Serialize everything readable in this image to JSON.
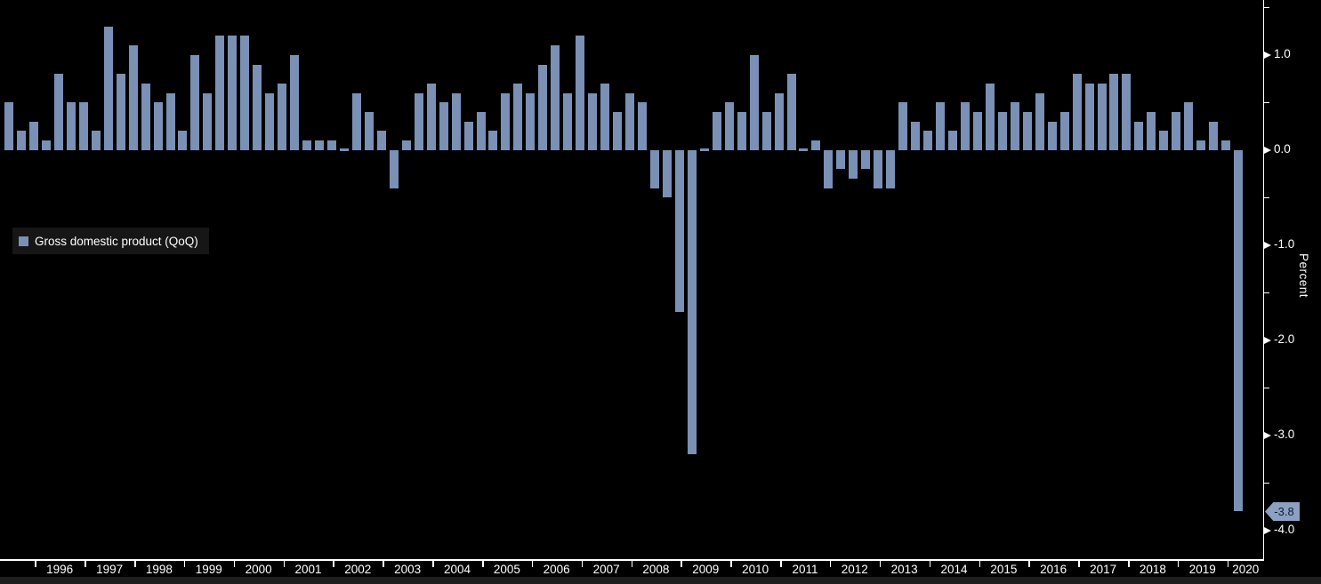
{
  "chart_data": {
    "type": "bar",
    "title": "",
    "legend_label": "Gross domestic product (QoQ)",
    "ylabel": "Percent",
    "grid": false,
    "legend_position": "middle-left",
    "categories": [
      "1995 Q2",
      "1995 Q3",
      "1995 Q4",
      "1996 Q1",
      "1996 Q2",
      "1996 Q3",
      "1996 Q4",
      "1997 Q1",
      "1997 Q2",
      "1997 Q3",
      "1997 Q4",
      "1998 Q1",
      "1998 Q2",
      "1998 Q3",
      "1998 Q4",
      "1999 Q1",
      "1999 Q2",
      "1999 Q3",
      "1999 Q4",
      "2000 Q1",
      "2000 Q2",
      "2000 Q3",
      "2000 Q4",
      "2001 Q1",
      "2001 Q2",
      "2001 Q3",
      "2001 Q4",
      "2002 Q1",
      "2002 Q2",
      "2002 Q3",
      "2002 Q4",
      "2003 Q1",
      "2003 Q2",
      "2003 Q3",
      "2003 Q4",
      "2004 Q1",
      "2004 Q2",
      "2004 Q3",
      "2004 Q4",
      "2005 Q1",
      "2005 Q2",
      "2005 Q3",
      "2005 Q4",
      "2006 Q1",
      "2006 Q2",
      "2006 Q3",
      "2006 Q4",
      "2007 Q1",
      "2007 Q2",
      "2007 Q3",
      "2007 Q4",
      "2008 Q1",
      "2008 Q2",
      "2008 Q3",
      "2008 Q4",
      "2009 Q1",
      "2009 Q2",
      "2009 Q3",
      "2009 Q4",
      "2010 Q1",
      "2010 Q2",
      "2010 Q3",
      "2010 Q4",
      "2011 Q1",
      "2011 Q2",
      "2011 Q3",
      "2011 Q4",
      "2012 Q1",
      "2012 Q2",
      "2012 Q3",
      "2012 Q4",
      "2013 Q1",
      "2013 Q2",
      "2013 Q3",
      "2013 Q4",
      "2014 Q1",
      "2014 Q2",
      "2014 Q3",
      "2014 Q4",
      "2015 Q1",
      "2015 Q2",
      "2015 Q3",
      "2015 Q4",
      "2016 Q1",
      "2016 Q2",
      "2016 Q3",
      "2016 Q4",
      "2017 Q1",
      "2017 Q2",
      "2017 Q3",
      "2017 Q4",
      "2018 Q1",
      "2018 Q2",
      "2018 Q3",
      "2018 Q4",
      "2019 Q1",
      "2019 Q2",
      "2019 Q3",
      "2019 Q4",
      "2020 Q1"
    ],
    "values": [
      0.5,
      0.2,
      0.3,
      0.1,
      0.8,
      0.5,
      0.5,
      0.2,
      1.3,
      0.8,
      1.1,
      0.7,
      0.5,
      0.6,
      0.2,
      1.0,
      0.6,
      1.2,
      1.2,
      1.2,
      0.9,
      0.6,
      0.7,
      1.0,
      0.1,
      0.1,
      0.1,
      0.0,
      0.6,
      0.4,
      0.2,
      -0.4,
      0.1,
      0.6,
      0.7,
      0.5,
      0.6,
      0.3,
      0.4,
      0.2,
      0.6,
      0.7,
      0.6,
      0.9,
      1.1,
      0.6,
      1.2,
      0.6,
      0.7,
      0.4,
      0.6,
      0.5,
      -0.4,
      -0.5,
      -1.7,
      -3.2,
      0.0,
      0.4,
      0.5,
      0.4,
      1.0,
      0.4,
      0.6,
      0.8,
      0.0,
      0.1,
      -0.4,
      -0.2,
      -0.3,
      -0.2,
      -0.4,
      -0.4,
      0.5,
      0.3,
      0.2,
      0.5,
      0.2,
      0.5,
      0.4,
      0.7,
      0.4,
      0.5,
      0.4,
      0.6,
      0.3,
      0.4,
      0.8,
      0.7,
      0.7,
      0.8,
      0.8,
      0.3,
      0.4,
      0.2,
      0.4,
      0.5,
      0.1,
      0.3,
      0.1,
      -3.8
    ],
    "y_axis": {
      "major_ticks": [
        {
          "v": 1.0,
          "label": "1.0"
        },
        {
          "v": 0.0,
          "label": "0.0"
        },
        {
          "v": -1.0,
          "label": "-1.0"
        },
        {
          "v": -2.0,
          "label": "-2.0"
        },
        {
          "v": -3.0,
          "label": "-3.0"
        },
        {
          "v": -4.0,
          "label": "-4.0"
        }
      ],
      "minor_ticks": [
        1.5,
        0.5,
        -0.5,
        -1.5,
        -2.5,
        -3.5
      ],
      "ylim": [
        -4.3,
        1.57
      ]
    },
    "x_axis": {
      "years": [
        "1996",
        "1997",
        "1998",
        "1999",
        "2000",
        "2001",
        "2002",
        "2003",
        "2004",
        "2005",
        "2006",
        "2007",
        "2008",
        "2009",
        "2010",
        "2011",
        "2012",
        "2013",
        "2014",
        "2015",
        "2016",
        "2017",
        "2018",
        "2019",
        "2020"
      ]
    },
    "last_value_label": "-3.8"
  },
  "colors": {
    "background": "#000000",
    "bar": "#7A90B5",
    "axis": "#FFFFFF",
    "text": "#FFFFFF",
    "tag_bg": "#8CA0C2",
    "tag_text": "#101D33",
    "legend_bg": "#161616",
    "bottom_strip": "#1E1E1E"
  }
}
